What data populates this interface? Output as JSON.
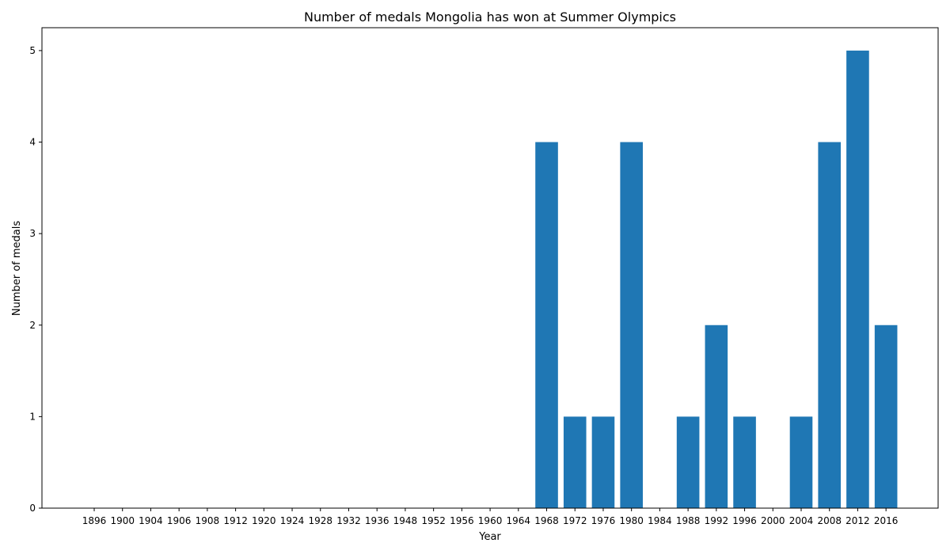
{
  "chart_data": {
    "type": "bar",
    "title": "Number of medals Mongolia has won at Summer Olympics",
    "xlabel": "Year",
    "ylabel": "Number of medals",
    "categories": [
      "1896",
      "1900",
      "1904",
      "1906",
      "1908",
      "1912",
      "1920",
      "1924",
      "1928",
      "1932",
      "1936",
      "1948",
      "1952",
      "1956",
      "1960",
      "1964",
      "1968",
      "1972",
      "1976",
      "1980",
      "1984",
      "1988",
      "1992",
      "1996",
      "2000",
      "2004",
      "2008",
      "2012",
      "2016"
    ],
    "values": [
      0,
      0,
      0,
      0,
      0,
      0,
      0,
      0,
      0,
      0,
      0,
      0,
      0,
      0,
      0,
      0,
      4,
      1,
      1,
      4,
      0,
      1,
      2,
      1,
      0,
      1,
      4,
      5,
      2
    ],
    "ylim": [
      0,
      5.25
    ],
    "yticks": [
      0,
      1,
      2,
      3,
      4,
      5
    ],
    "grid": false,
    "legend": "none",
    "bar_color": "#1f77b4"
  }
}
